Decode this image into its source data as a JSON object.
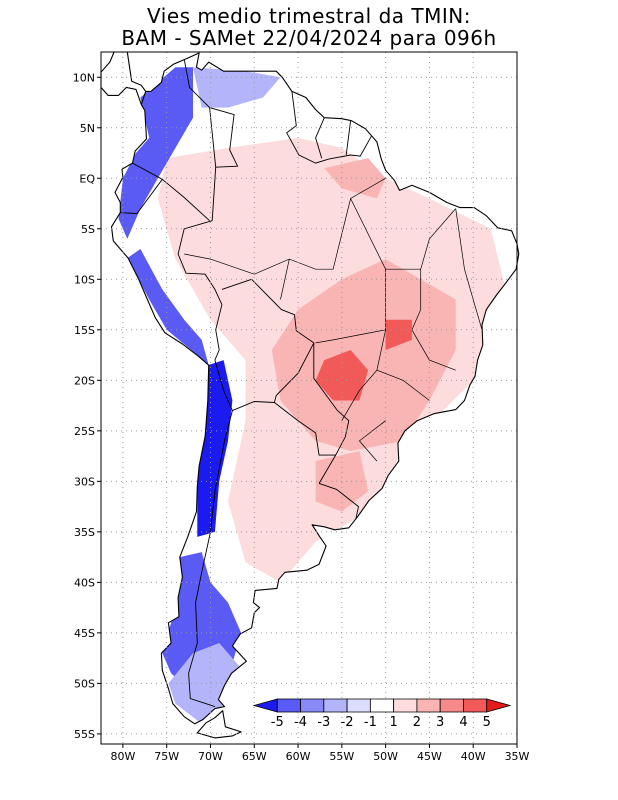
{
  "title_line1": "Vies medio trimestral da TMIN:",
  "title_line2": "BAM - SAMet 22/04/2024  para 096h",
  "lat_ticks": [
    {
      "lat": 10,
      "label": "10N"
    },
    {
      "lat": 5,
      "label": "5N"
    },
    {
      "lat": 0,
      "label": "EQ"
    },
    {
      "lat": -5,
      "label": "5S"
    },
    {
      "lat": -10,
      "label": "10S"
    },
    {
      "lat": -15,
      "label": "15S"
    },
    {
      "lat": -20,
      "label": "20S"
    },
    {
      "lat": -25,
      "label": "25S"
    },
    {
      "lat": -30,
      "label": "30S"
    },
    {
      "lat": -35,
      "label": "35S"
    },
    {
      "lat": -40,
      "label": "40S"
    },
    {
      "lat": -45,
      "label": "45S"
    },
    {
      "lat": -50,
      "label": "50S"
    },
    {
      "lat": -55,
      "label": "55S"
    }
  ],
  "lon_ticks": [
    {
      "lon": -80,
      "label": "80W"
    },
    {
      "lon": -75,
      "label": "75W"
    },
    {
      "lon": -70,
      "label": "70W"
    },
    {
      "lon": -65,
      "label": "65W"
    },
    {
      "lon": -60,
      "label": "60W"
    },
    {
      "lon": -55,
      "label": "55W"
    },
    {
      "lon": -50,
      "label": "50W"
    },
    {
      "lon": -45,
      "label": "45W"
    },
    {
      "lon": -40,
      "label": "40W"
    },
    {
      "lon": -35,
      "label": "35W"
    }
  ],
  "extent": {
    "lon_min": -82.5,
    "lon_max": -35,
    "lat_min": -56,
    "lat_max": 12.5
  },
  "colorbar": {
    "colors": [
      "#1b1bf0",
      "#5a5af5",
      "#8a8af6",
      "#b4b4fa",
      "#dcdcfc",
      "#ffffff",
      "#fcdcdc",
      "#f9b4b4",
      "#f68a8a",
      "#f25a5a",
      "#e41b1b"
    ],
    "labels": [
      "-5",
      "-4",
      "-3",
      "-2",
      "-1",
      "1",
      "2",
      "3",
      "4",
      "5"
    ]
  },
  "colors": {
    "strong_cold": "#1b1bf0",
    "cold": "#5a5af5",
    "mild_cold": "#b4b4fa",
    "mild_warm": "#fcdcdc",
    "warm": "#f9b4b4",
    "strong_warm": "#f25a5a",
    "border": "#000000",
    "grid": "#999999"
  }
}
